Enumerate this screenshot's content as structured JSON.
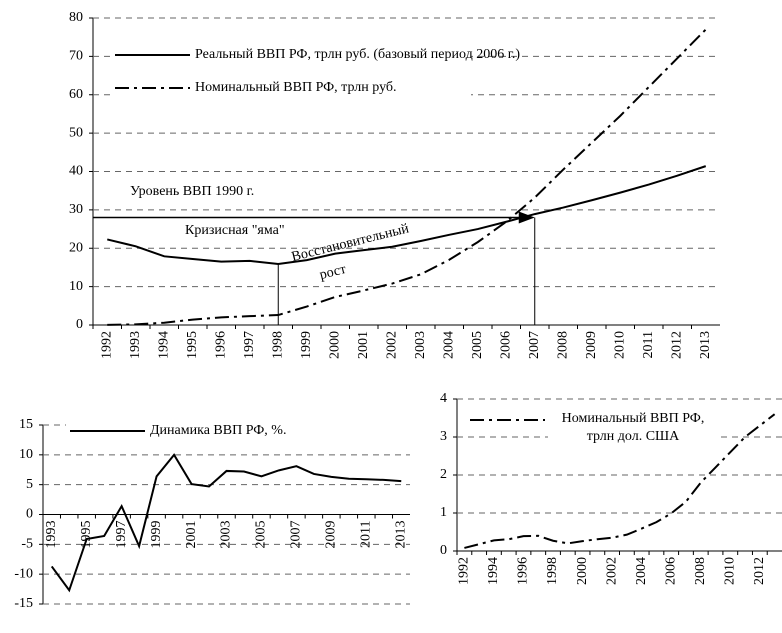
{
  "chart_data": [
    {
      "type": "line",
      "categories": [
        "1992",
        "1993",
        "1994",
        "1995",
        "1996",
        "1997",
        "1998",
        "1999",
        "2000",
        "2001",
        "2002",
        "2003",
        "2004",
        "2005",
        "2006",
        "2007",
        "2008",
        "2009",
        "2010",
        "2011",
        "2012",
        "2013"
      ],
      "series": [
        {
          "name": "Реальный ВВП РФ, трлн  руб. (базовый период 2006 г.)",
          "color": "#000000",
          "dash": "solid",
          "values": [
            22.3,
            20.5,
            17.9,
            17.2,
            16.5,
            16.7,
            15.9,
            16.9,
            18.6,
            19.5,
            20.4,
            21.9,
            23.5,
            25.0,
            26.9,
            28.9,
            30.6,
            32.5,
            34.5,
            36.6,
            38.9,
            41.4
          ]
        },
        {
          "name": "Номинальный ВВП РФ,  трлн руб.",
          "color": "#000000",
          "dash": "dashdot",
          "values": [
            0.02,
            0.17,
            0.6,
            1.4,
            2.0,
            2.3,
            2.6,
            4.8,
            7.3,
            9.0,
            10.8,
            13.2,
            17.0,
            21.6,
            26.9,
            33.2,
            40.5,
            47.5,
            54.5,
            62.0,
            69.5,
            77.0
          ]
        }
      ],
      "ylim": [
        0,
        80
      ],
      "yticks": [
        0,
        10,
        20,
        30,
        40,
        50,
        60,
        70,
        80
      ],
      "grid": true,
      "legend": "upper left",
      "reference_line": {
        "value": 28,
        "label": "Уровень ВВП 1990 г."
      },
      "annotations": [
        "Кризисная \"яма\"",
        "Восстановительный",
        "рост"
      ]
    },
    {
      "type": "line",
      "categories": [
        "1993",
        null,
        "1995",
        null,
        "1997",
        null,
        "1999",
        null,
        "2001",
        null,
        "2003",
        null,
        "2005",
        null,
        "2007",
        null,
        "2009",
        null,
        "2011",
        null,
        "2013"
      ],
      "series": [
        {
          "name": "Динамика ВВП РФ, %.",
          "color": "#000000",
          "dash": "solid",
          "values": [
            -8.7,
            -12.7,
            -4.1,
            -3.6,
            1.4,
            -5.3,
            6.4,
            10.0,
            5.1,
            4.7,
            7.3,
            7.2,
            6.4,
            7.4,
            8.1,
            6.8,
            6.3,
            6.0,
            5.9,
            5.8,
            5.6
          ]
        }
      ],
      "ylim": [
        -15,
        15
      ],
      "yticks": [
        -15,
        -10,
        -5,
        0,
        5,
        10,
        15
      ],
      "grid": true,
      "legend": "upper left"
    },
    {
      "type": "line",
      "categories": [
        "1992",
        null,
        "1994",
        null,
        "1996",
        null,
        "1998",
        null,
        "2000",
        null,
        "2002",
        null,
        "2004",
        null,
        "2006",
        null,
        "2008",
        null,
        "2010",
        null,
        "2012",
        null
      ],
      "series": [
        {
          "name": "Номинальный ВВП РФ, трлн дол. США",
          "color": "#000000",
          "dash": "dashdot",
          "values": [
            0.08,
            0.18,
            0.28,
            0.31,
            0.39,
            0.4,
            0.27,
            0.2,
            0.26,
            0.31,
            0.35,
            0.43,
            0.59,
            0.76,
            0.99,
            1.3,
            1.8,
            2.2,
            2.6,
            3.0,
            3.3,
            3.6
          ]
        }
      ],
      "ylim": [
        0,
        4
      ],
      "yticks": [
        0,
        1,
        2,
        3,
        4
      ],
      "grid": true,
      "legend": "upper left"
    }
  ]
}
